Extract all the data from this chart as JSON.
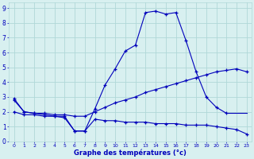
{
  "title": "Graphe des températures (°c)",
  "bg_color": "#d8f0f0",
  "line_color": "#0000bb",
  "grid_color": "#b0d8d8",
  "xlim": [
    -0.5,
    23.5
  ],
  "ylim": [
    0,
    9.4
  ],
  "yticks": [
    0,
    1,
    2,
    3,
    4,
    5,
    6,
    7,
    8,
    9
  ],
  "xticks": [
    0,
    1,
    2,
    3,
    4,
    5,
    6,
    7,
    8,
    9,
    10,
    11,
    12,
    13,
    14,
    15,
    16,
    17,
    18,
    19,
    20,
    21,
    22,
    23
  ],
  "series": {
    "temp": {
      "x": [
        0,
        1,
        2,
        3,
        4,
        5,
        6,
        7,
        8,
        9,
        10,
        11,
        12,
        13,
        14,
        15,
        16,
        17,
        18,
        19,
        20,
        21
      ],
      "y": [
        2.9,
        2.0,
        1.9,
        1.8,
        1.7,
        1.6,
        0.7,
        0.7,
        2.2,
        3.8,
        4.9,
        6.1,
        6.5,
        8.7,
        8.8,
        8.6,
        8.7,
        6.8,
        4.7,
        3.0,
        2.3,
        1.9
      ]
    },
    "upper": {
      "x": [
        0,
        1,
        2,
        3,
        4,
        5,
        6,
        7,
        8,
        9,
        10,
        11,
        12,
        13,
        14,
        15,
        16,
        17,
        18,
        19,
        20,
        21,
        22,
        23
      ],
      "y": [
        2.8,
        2.0,
        1.9,
        1.9,
        1.8,
        1.8,
        1.7,
        1.7,
        2.0,
        2.3,
        2.6,
        2.8,
        3.0,
        3.3,
        3.5,
        3.7,
        3.9,
        4.1,
        4.3,
        4.5,
        4.7,
        4.8,
        4.9,
        4.7
      ]
    },
    "lower": {
      "x": [
        0,
        1,
        2,
        3,
        4,
        5,
        6,
        7,
        8,
        9,
        10,
        11,
        12,
        13,
        14,
        15,
        16,
        17,
        18,
        19,
        20,
        21,
        22,
        23
      ],
      "y": [
        2.0,
        1.8,
        1.8,
        1.7,
        1.7,
        1.7,
        0.7,
        0.7,
        1.5,
        1.4,
        1.4,
        1.3,
        1.3,
        1.3,
        1.2,
        1.2,
        1.2,
        1.1,
        1.1,
        1.1,
        1.0,
        0.9,
        0.8,
        0.5
      ]
    },
    "close": {
      "x": [
        21,
        22,
        23
      ],
      "y": [
        1.9,
        1.9,
        1.9
      ]
    }
  }
}
